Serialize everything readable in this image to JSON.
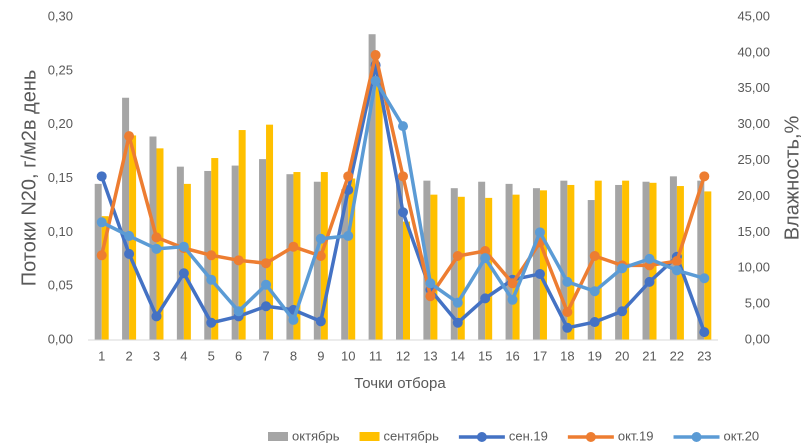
{
  "chart_data": {
    "type": "bar_line",
    "y_label": "Потоки N20, г/м2в день",
    "y2_label": "Влажность,%",
    "x_label": "Точки отбора",
    "categories": [
      "1",
      "2",
      "3",
      "4",
      "5",
      "6",
      "7",
      "8",
      "9",
      "10",
      "11",
      "12",
      "13",
      "14",
      "15",
      "16",
      "17",
      "18",
      "19",
      "20",
      "21",
      "22",
      "23"
    ],
    "series": [
      {
        "name": "октябрь",
        "kind": "bar",
        "color": "#a5a5a5",
        "values": [
          0.145,
          0.225,
          0.189,
          0.161,
          0.157,
          0.162,
          0.168,
          0.154,
          0.147,
          0.14,
          0.284,
          0.15,
          0.148,
          0.141,
          0.147,
          0.145,
          0.141,
          0.148,
          0.13,
          0.144,
          0.147,
          0.152,
          0.148
        ]
      },
      {
        "name": "сентябрь",
        "kind": "bar",
        "color": "#ffc000",
        "values": [
          0.115,
          0.19,
          0.178,
          0.145,
          0.169,
          0.195,
          0.2,
          0.156,
          0.156,
          0.15,
          0.24,
          0.11,
          0.135,
          0.133,
          0.132,
          0.135,
          0.139,
          0.144,
          0.148,
          0.148,
          0.146,
          0.143,
          0.138
        ]
      },
      {
        "name": "сен.19",
        "kind": "line",
        "axis": "y2",
        "color": "#4472c4",
        "values": [
          22.8,
          12.0,
          3.3,
          9.3,
          2.4,
          3.3,
          4.7,
          4.2,
          2.6,
          20.9,
          38.3,
          17.8,
          7.0,
          2.4,
          5.8,
          8.4,
          9.2,
          1.7,
          2.5,
          4.0,
          8.1,
          11.6,
          1.1
        ]
      },
      {
        "name": "окт.19",
        "kind": "line",
        "axis": "y2",
        "color": "#ed7d31",
        "values": [
          11.8,
          28.4,
          14.3,
          12.8,
          11.8,
          11.1,
          10.7,
          13.0,
          11.7,
          22.8,
          39.7,
          22.8,
          6.1,
          11.7,
          12.4,
          7.9,
          13.6,
          3.9,
          11.7,
          10.4,
          10.4,
          11.0,
          22.8
        ]
      },
      {
        "name": "окт.20",
        "kind": "line",
        "axis": "y2",
        "color": "#5b9bd5",
        "values": [
          16.4,
          14.5,
          12.7,
          13.0,
          8.4,
          4.0,
          7.7,
          2.8,
          14.1,
          14.5,
          36.1,
          29.8,
          7.9,
          5.2,
          11.4,
          5.6,
          15.0,
          8.1,
          6.8,
          10.0,
          11.3,
          9.7,
          8.6
        ]
      }
    ],
    "ylim": [
      0,
      0.3
    ],
    "yticks": [
      {
        "value": 0,
        "label": "0,00"
      },
      {
        "value": 0.05,
        "label": "0,05"
      },
      {
        "value": 0.1,
        "label": "0,10"
      },
      {
        "value": 0.15,
        "label": "0,15"
      },
      {
        "value": 0.2,
        "label": "0,20"
      },
      {
        "value": 0.25,
        "label": "0,25"
      },
      {
        "value": 0.3,
        "label": "0,30"
      }
    ],
    "y2lim": [
      0,
      45
    ],
    "y2ticks": [
      {
        "value": 0,
        "label": "0,00"
      },
      {
        "value": 5,
        "label": "5,00"
      },
      {
        "value": 10,
        "label": "10,00"
      },
      {
        "value": 15,
        "label": "15,00"
      },
      {
        "value": 20,
        "label": "20,00"
      },
      {
        "value": 25,
        "label": "25,00"
      },
      {
        "value": 30,
        "label": "30,00"
      },
      {
        "value": 35,
        "label": "35,00"
      },
      {
        "value": 40,
        "label": "40,00"
      },
      {
        "value": 45,
        "label": "45,00"
      }
    ],
    "legend": "bottom"
  }
}
